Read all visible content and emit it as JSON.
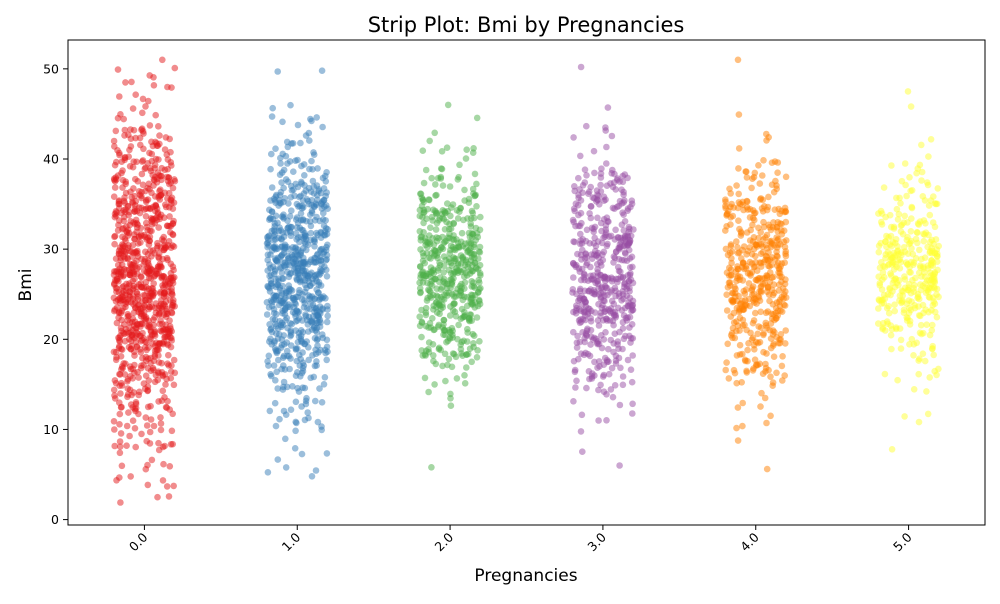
{
  "chart_data": {
    "type": "scatter",
    "subtype": "strip",
    "title": "Strip Plot: Bmi by Pregnancies",
    "xlabel": "Pregnancies",
    "ylabel": "Bmi",
    "categories": [
      "0.0",
      "1.0",
      "2.0",
      "3.0",
      "4.0",
      "5.0"
    ],
    "ylim": [
      -0.6,
      53.2
    ],
    "yticks": [
      0,
      10,
      20,
      30,
      40,
      50
    ],
    "ytick_labels": [
      "0",
      "10",
      "20",
      "30",
      "40",
      "50"
    ],
    "xtick_rotation_deg": 45,
    "grid": false,
    "legend": "none",
    "jitter_width": 0.2,
    "marker_alpha": 0.5,
    "series": [
      {
        "category": "0.0",
        "color": "#e41a1c",
        "min": 1.9,
        "max": 51.0,
        "core_low": 9.0,
        "core_high": 45.0,
        "approx_n": 900
      },
      {
        "category": "1.0",
        "color": "#377eb8",
        "min": 4.8,
        "max": 49.8,
        "core_low": 11.5,
        "core_high": 42.5,
        "approx_n": 700
      },
      {
        "category": "2.0",
        "color": "#4daf4a",
        "min": 5.8,
        "max": 46.0,
        "core_low": 15.5,
        "core_high": 39.0,
        "approx_n": 500
      },
      {
        "category": "3.0",
        "color": "#984ea3",
        "min": 6.0,
        "max": 50.2,
        "core_low": 14.0,
        "core_high": 40.0,
        "approx_n": 500
      },
      {
        "category": "4.0",
        "color": "#ff7f00",
        "min": 5.6,
        "max": 51.0,
        "core_low": 14.5,
        "core_high": 40.0,
        "approx_n": 450
      },
      {
        "category": "5.0",
        "color": "#ffff33",
        "min": 7.8,
        "max": 47.5,
        "core_low": 17.0,
        "core_high": 37.5,
        "approx_n": 350
      }
    ]
  }
}
